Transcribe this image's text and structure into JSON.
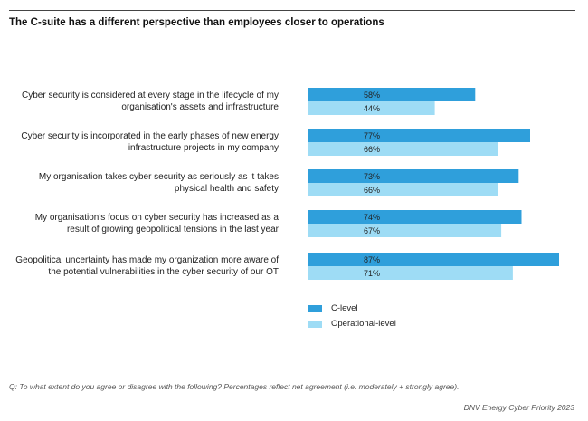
{
  "title": "The C-suite has a different perspective than employees closer to operations",
  "note": "Q: To what extent do you agree or disagree with the following? Percentages reflect net agreement (i.e. moderately + strongly agree).",
  "source": "DNV Energy Cyber Priority 2023",
  "colors": {
    "c_level": "#2f9fdb",
    "operational": "#9edcf5"
  },
  "chart_data": {
    "type": "bar",
    "orientation": "horizontal",
    "categories": [
      [
        "Cyber security is considered at every stage in the lifecycle of my",
        "organisation's assets and infrastructure"
      ],
      [
        "Cyber security is incorporated in the early phases of new energy",
        "infrastructure projects in my company"
      ],
      [
        "My organisation takes cyber security as seriously as it takes",
        "physical health and safety"
      ],
      [
        "My organisation's focus on cyber security has increased as a",
        "result of growing geopolitical tensions in the last year"
      ],
      [
        "Geopolitical uncertainty has made my organization more aware of",
        "the potential vulnerabilities in the cyber security of our OT"
      ]
    ],
    "series": [
      {
        "name": "C-level",
        "values": [
          58,
          77,
          73,
          74,
          87
        ],
        "labels": [
          "58%",
          "77%",
          "73%",
          "74%",
          "87%"
        ]
      },
      {
        "name": "Operational-level",
        "values": [
          44,
          66,
          66,
          67,
          71
        ],
        "labels": [
          "44%",
          "66%",
          "66%",
          "67%",
          "71%"
        ]
      }
    ],
    "xlim": [
      0,
      87
    ],
    "legend": "bottom-left"
  }
}
